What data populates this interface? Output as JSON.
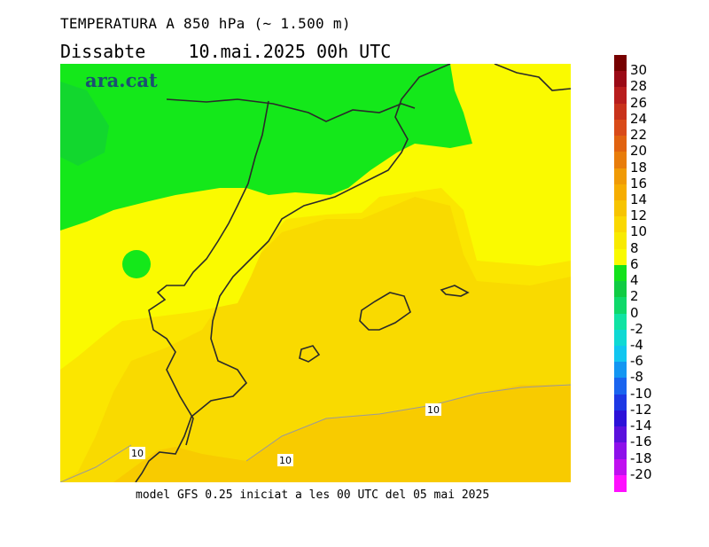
{
  "title_line1": "TEMPERATURA A 850 hPa (~ 1.500 m)",
  "title_line2": "Dissabte    10.mai.2025 00h UTC",
  "logo": "ara.cat",
  "footer": "model GFS 0.25 iniciat a les 00 UTC del 05 mai 2025",
  "contour_labels": [
    "10",
    "10",
    "10"
  ],
  "legend": {
    "labels": [
      "30",
      "28",
      "26",
      "24",
      "22",
      "20",
      "18",
      "16",
      "14",
      "12",
      "10",
      "8",
      "6",
      "4",
      "2",
      "0",
      "-2",
      "-4",
      "-6",
      "-8",
      "-10",
      "-12",
      "-14",
      "-16",
      "-18",
      "-20"
    ],
    "colors": [
      "#760000",
      "#9a0a16",
      "#b81d1d",
      "#c8321b",
      "#d94a18",
      "#e1620f",
      "#e87c0a",
      "#f09a05",
      "#f6ad00",
      "#f7c400",
      "#fad800",
      "#f8ea00",
      "#f9fa00",
      "#13e21b",
      "#10cc43",
      "#0fd96a",
      "#10e3a3",
      "#0fd9d4",
      "#11c6f0",
      "#1396f2",
      "#1a64ef",
      "#1d38e4",
      "#2c11d8",
      "#5a10dd",
      "#8d10ea",
      "#c010f0",
      "#ff10ff"
    ]
  },
  "colors": {
    "green_zone": "#14e81a",
    "green_dark": "#10cc3c",
    "yellow_zone": "#fafa00",
    "t8_zone": "#fbe600",
    "t10_zone": "#f9da00",
    "t12_zone": "#f8cb00",
    "coast_line": "#2a2a2a"
  }
}
